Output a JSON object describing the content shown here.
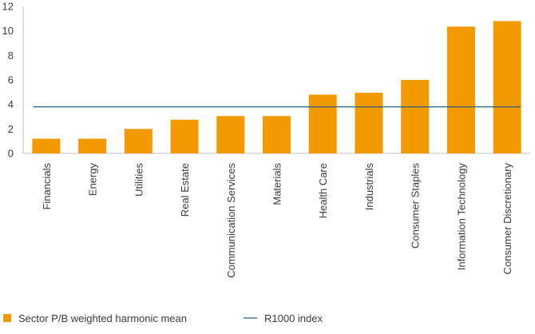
{
  "chart_data": {
    "type": "bar",
    "title": "",
    "xlabel": "",
    "ylabel": "",
    "ylim": [
      0,
      12
    ],
    "yticks": [
      "0",
      "2",
      "4",
      "6",
      "8",
      "10",
      "12"
    ],
    "grid": false,
    "legend_position": "bottom-left",
    "categories": [
      "Financials",
      "Energy",
      "Utilities",
      "Real Estate",
      "Communication Services",
      "Materials",
      "Health Care",
      "Industrials",
      "Consumer Staples",
      "Information Technology",
      "Consumer Discretionary"
    ],
    "series": [
      {
        "name": "Sector P/B weighted harmonic mean",
        "type": "bar",
        "color": "#F39A00",
        "values": [
          1.2,
          1.2,
          2.0,
          2.75,
          3.05,
          3.05,
          4.8,
          4.95,
          6.0,
          10.35,
          10.8
        ]
      },
      {
        "name": "R1000 index",
        "type": "line",
        "color": "#1F5F7A",
        "value": 3.8
      }
    ]
  }
}
